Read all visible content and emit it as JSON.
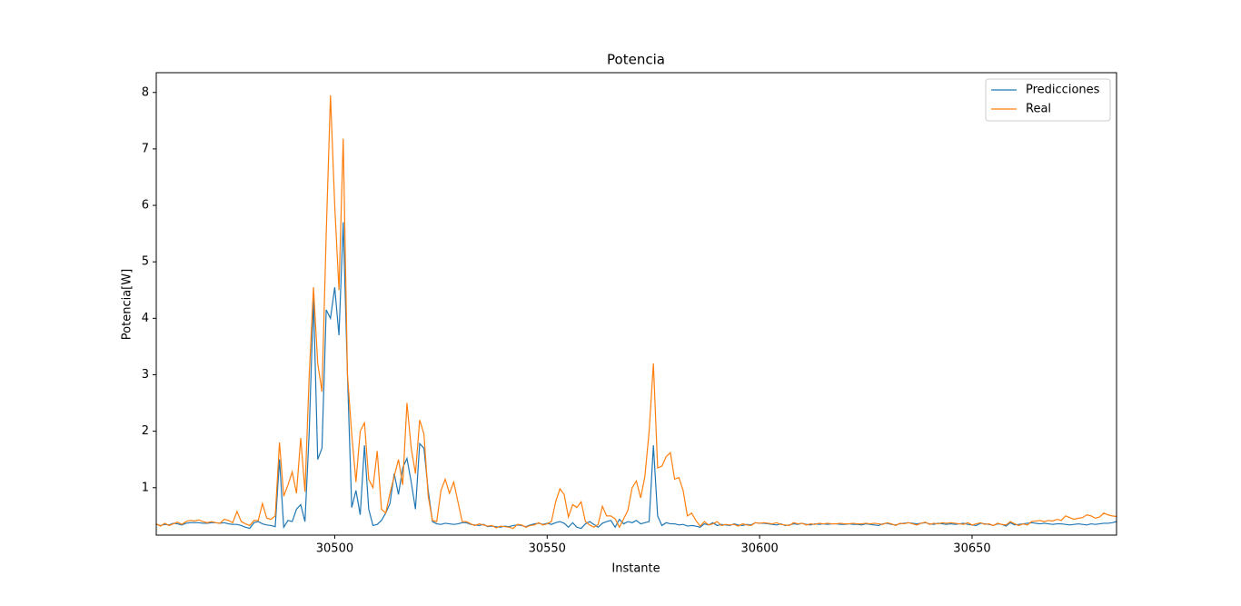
{
  "chart_data": {
    "type": "line",
    "title": "Potencia",
    "xlabel": "Instante",
    "ylabel": "Potencia[W]",
    "x": [
      30458,
      30459,
      30460,
      30461,
      30462,
      30463,
      30464,
      30465,
      30466,
      30467,
      30468,
      30469,
      30470,
      30471,
      30472,
      30473,
      30474,
      30475,
      30476,
      30477,
      30478,
      30479,
      30480,
      30481,
      30482,
      30483,
      30484,
      30485,
      30486,
      30487,
      30488,
      30489,
      30490,
      30491,
      30492,
      30493,
      30494,
      30495,
      30496,
      30497,
      30498,
      30499,
      30500,
      30501,
      30502,
      30503,
      30504,
      30505,
      30506,
      30507,
      30508,
      30509,
      30510,
      30511,
      30512,
      30513,
      30514,
      30515,
      30516,
      30517,
      30518,
      30519,
      30520,
      30521,
      30522,
      30523,
      30524,
      30525,
      30526,
      30527,
      30528,
      30529,
      30530,
      30531,
      30532,
      30533,
      30534,
      30535,
      30536,
      30537,
      30538,
      30539,
      30540,
      30541,
      30542,
      30543,
      30544,
      30545,
      30546,
      30547,
      30548,
      30549,
      30550,
      30551,
      30552,
      30553,
      30554,
      30555,
      30556,
      30557,
      30558,
      30559,
      30560,
      30561,
      30562,
      30563,
      30564,
      30565,
      30566,
      30567,
      30568,
      30569,
      30570,
      30571,
      30572,
      30573,
      30574,
      30575,
      30576,
      30577,
      30578,
      30579,
      30580,
      30581,
      30582,
      30583,
      30584,
      30585,
      30586,
      30587,
      30588,
      30589,
      30590,
      30591,
      30592,
      30593,
      30594,
      30595,
      30596,
      30597,
      30598,
      30599,
      30600,
      30601,
      30602,
      30603,
      30604,
      30605,
      30606,
      30607,
      30608,
      30609,
      30610,
      30611,
      30612,
      30613,
      30614,
      30615,
      30616,
      30617,
      30618,
      30619,
      30620,
      30621,
      30622,
      30623,
      30624,
      30625,
      30626,
      30627,
      30628,
      30629,
      30630,
      30631,
      30632,
      30633,
      30634,
      30635,
      30636,
      30637,
      30638,
      30639,
      30640,
      30641,
      30642,
      30643,
      30644,
      30645,
      30646,
      30647,
      30648,
      30649,
      30650,
      30651,
      30652,
      30653,
      30654,
      30655,
      30656,
      30657,
      30658,
      30659,
      30660,
      30661,
      30662,
      30663,
      30664,
      30665,
      30666,
      30667,
      30668,
      30669,
      30670,
      30671,
      30672,
      30673,
      30674,
      30675,
      30676,
      30677,
      30678,
      30679,
      30680,
      30681,
      30682,
      30683,
      30684
    ],
    "series": [
      {
        "name": "Predicciones",
        "color": "#1f77b4",
        "values": [
          0.35,
          0.33,
          0.35,
          0.34,
          0.37,
          0.36,
          0.34,
          0.37,
          0.38,
          0.38,
          0.38,
          0.37,
          0.37,
          0.38,
          0.38,
          0.37,
          0.38,
          0.36,
          0.35,
          0.35,
          0.33,
          0.3,
          0.28,
          0.38,
          0.4,
          0.36,
          0.34,
          0.33,
          0.31,
          1.5,
          0.3,
          0.42,
          0.4,
          0.62,
          0.7,
          0.4,
          2.0,
          4.35,
          1.5,
          1.7,
          4.15,
          4.0,
          4.55,
          3.7,
          5.7,
          3.0,
          0.65,
          0.95,
          0.52,
          1.75,
          0.62,
          0.33,
          0.35,
          0.42,
          0.55,
          0.72,
          1.25,
          0.88,
          1.35,
          1.52,
          1.1,
          0.62,
          1.78,
          1.7,
          0.95,
          0.4,
          0.36,
          0.35,
          0.37,
          0.36,
          0.35,
          0.36,
          0.38,
          0.38,
          0.35,
          0.34,
          0.33,
          0.35,
          0.31,
          0.32,
          0.31,
          0.3,
          0.32,
          0.31,
          0.33,
          0.34,
          0.33,
          0.31,
          0.34,
          0.36,
          0.37,
          0.35,
          0.37,
          0.35,
          0.38,
          0.4,
          0.37,
          0.3,
          0.38,
          0.3,
          0.28,
          0.36,
          0.4,
          0.35,
          0.3,
          0.37,
          0.4,
          0.42,
          0.3,
          0.44,
          0.36,
          0.4,
          0.38,
          0.42,
          0.36,
          0.38,
          0.4,
          1.75,
          0.5,
          0.33,
          0.38,
          0.36,
          0.36,
          0.34,
          0.35,
          0.32,
          0.33,
          0.32,
          0.3,
          0.36,
          0.34,
          0.38,
          0.33,
          0.35,
          0.34,
          0.33,
          0.36,
          0.34,
          0.33,
          0.35,
          0.34,
          0.38,
          0.37,
          0.37,
          0.36,
          0.35,
          0.34,
          0.36,
          0.33,
          0.34,
          0.36,
          0.35,
          0.37,
          0.35,
          0.34,
          0.36,
          0.35,
          0.36,
          0.35,
          0.36,
          0.36,
          0.35,
          0.35,
          0.36,
          0.35,
          0.35,
          0.34,
          0.36,
          0.35,
          0.34,
          0.33,
          0.36,
          0.37,
          0.35,
          0.34,
          0.36,
          0.37,
          0.38,
          0.37,
          0.36,
          0.37,
          0.38,
          0.36,
          0.35,
          0.37,
          0.36,
          0.35,
          0.36,
          0.35,
          0.36,
          0.37,
          0.35,
          0.34,
          0.33,
          0.37,
          0.36,
          0.35,
          0.33,
          0.36,
          0.35,
          0.32,
          0.38,
          0.34,
          0.35,
          0.36,
          0.37,
          0.38,
          0.37,
          0.36,
          0.37,
          0.36,
          0.35,
          0.36,
          0.36,
          0.35,
          0.34,
          0.35,
          0.36,
          0.35,
          0.34,
          0.36,
          0.35,
          0.36,
          0.37,
          0.37,
          0.38,
          0.4
        ]
      },
      {
        "name": "Real",
        "color": "#ff7f0e",
        "values": [
          0.36,
          0.32,
          0.37,
          0.33,
          0.36,
          0.39,
          0.35,
          0.4,
          0.42,
          0.41,
          0.43,
          0.4,
          0.38,
          0.4,
          0.38,
          0.37,
          0.44,
          0.42,
          0.38,
          0.58,
          0.4,
          0.36,
          0.33,
          0.42,
          0.42,
          0.72,
          0.46,
          0.44,
          0.5,
          1.8,
          0.85,
          1.05,
          1.28,
          0.9,
          1.88,
          0.93,
          3.0,
          4.55,
          3.2,
          2.7,
          5.5,
          7.95,
          6.0,
          4.5,
          7.18,
          3.0,
          1.95,
          1.1,
          2.0,
          2.15,
          1.15,
          1.0,
          1.65,
          0.62,
          0.55,
          0.9,
          1.2,
          1.5,
          1.05,
          2.5,
          1.7,
          1.25,
          2.2,
          1.95,
          0.85,
          0.42,
          0.4,
          0.95,
          1.15,
          0.9,
          1.1,
          0.75,
          0.4,
          0.4,
          0.36,
          0.33,
          0.36,
          0.34,
          0.32,
          0.33,
          0.29,
          0.32,
          0.31,
          0.3,
          0.28,
          0.35,
          0.34,
          0.3,
          0.33,
          0.34,
          0.38,
          0.34,
          0.36,
          0.4,
          0.75,
          0.98,
          0.88,
          0.48,
          0.7,
          0.65,
          0.75,
          0.4,
          0.34,
          0.3,
          0.35,
          0.67,
          0.5,
          0.5,
          0.45,
          0.3,
          0.45,
          0.6,
          1.0,
          1.12,
          0.82,
          1.2,
          2.0,
          3.2,
          1.35,
          1.38,
          1.55,
          1.62,
          1.15,
          1.18,
          0.95,
          0.5,
          0.55,
          0.42,
          0.32,
          0.4,
          0.34,
          0.36,
          0.4,
          0.33,
          0.35,
          0.34,
          0.35,
          0.32,
          0.36,
          0.34,
          0.33,
          0.38,
          0.37,
          0.38,
          0.37,
          0.36,
          0.38,
          0.35,
          0.34,
          0.33,
          0.38,
          0.36,
          0.37,
          0.34,
          0.36,
          0.35,
          0.37,
          0.36,
          0.37,
          0.36,
          0.36,
          0.37,
          0.36,
          0.36,
          0.37,
          0.36,
          0.36,
          0.37,
          0.36,
          0.37,
          0.36,
          0.35,
          0.38,
          0.36,
          0.33,
          0.37,
          0.36,
          0.38,
          0.36,
          0.34,
          0.37,
          0.39,
          0.35,
          0.37,
          0.36,
          0.38,
          0.37,
          0.38,
          0.37,
          0.36,
          0.35,
          0.38,
          0.34,
          0.36,
          0.38,
          0.35,
          0.36,
          0.33,
          0.37,
          0.35,
          0.34,
          0.4,
          0.36,
          0.33,
          0.36,
          0.34,
          0.4,
          0.41,
          0.42,
          0.4,
          0.42,
          0.41,
          0.44,
          0.42,
          0.5,
          0.47,
          0.44,
          0.46,
          0.47,
          0.52,
          0.5,
          0.46,
          0.48,
          0.55,
          0.52,
          0.5,
          0.49
        ]
      }
    ],
    "xlim": [
      30458,
      30684
    ],
    "xticks": [
      30500,
      30550,
      30600,
      30650
    ],
    "ylim": [
      0.16,
      8.35
    ],
    "yticks": [
      1,
      2,
      3,
      4,
      5,
      6,
      7,
      8
    ],
    "legend": "upper right",
    "grid": false
  }
}
